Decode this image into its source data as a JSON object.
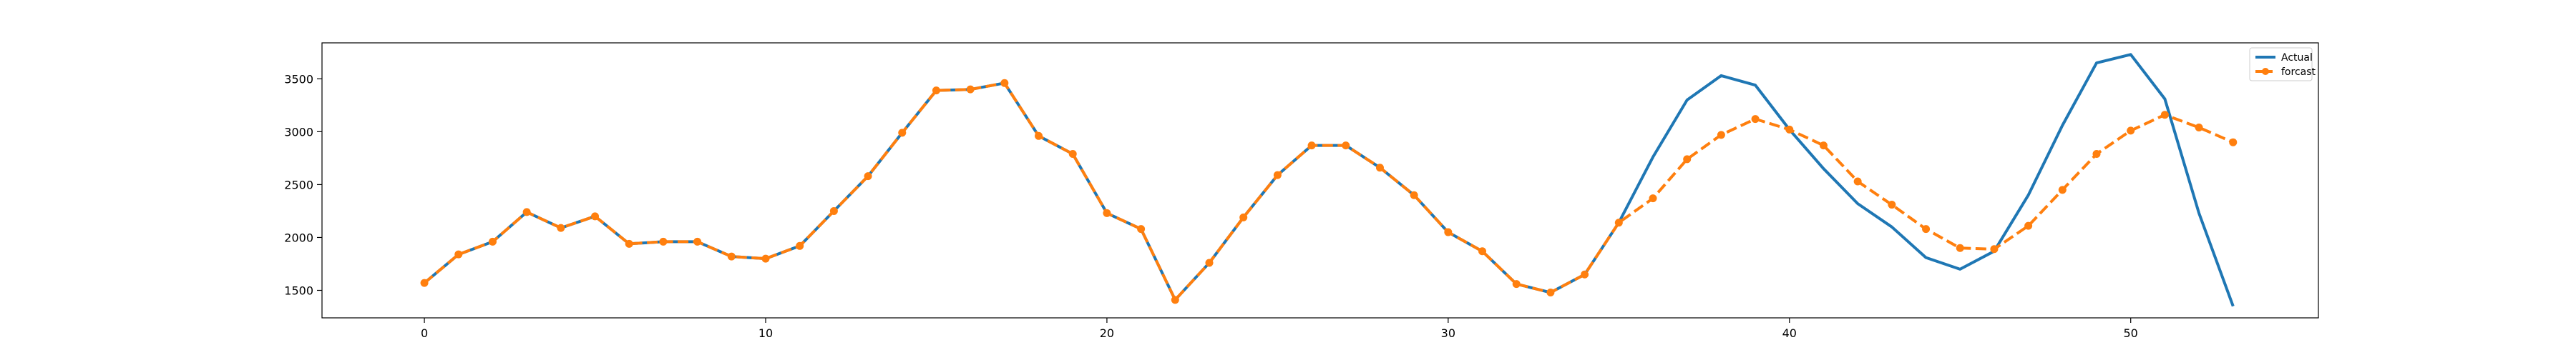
{
  "chart_data": {
    "type": "line",
    "title": "",
    "xlabel": "",
    "ylabel": "",
    "xlim": [
      -3,
      55.5
    ],
    "ylim": [
      1240,
      3840
    ],
    "x_ticks": [
      0,
      10,
      20,
      30,
      40,
      50
    ],
    "y_ticks": [
      1500,
      2000,
      2500,
      3000,
      3500
    ],
    "grid": false,
    "legend": "top-right",
    "series": [
      {
        "name": "Actual",
        "color": "#1f77b4",
        "style": "solid",
        "x": [
          0,
          1,
          2,
          3,
          4,
          5,
          6,
          7,
          8,
          9,
          10,
          11,
          12,
          13,
          14,
          15,
          16,
          17,
          18,
          19,
          20,
          21,
          22,
          23,
          24,
          25,
          26,
          27,
          28,
          29,
          30,
          31,
          32,
          33,
          34,
          35,
          36,
          37,
          38,
          39,
          40,
          41,
          42,
          43,
          44,
          45,
          46,
          47,
          48,
          49,
          50,
          51,
          52,
          53
        ],
        "values": [
          1570,
          1840,
          1960,
          2240,
          2090,
          2200,
          1940,
          1960,
          1960,
          1820,
          1800,
          1920,
          2250,
          2580,
          2990,
          3390,
          3400,
          3460,
          2960,
          2790,
          2230,
          2080,
          1410,
          1760,
          2190,
          2590,
          2870,
          2870,
          2660,
          2400,
          2050,
          1870,
          1560,
          1480,
          1650,
          2140,
          2760,
          3300,
          3530,
          3440,
          3020,
          2650,
          2320,
          2100,
          1810,
          1700,
          1870,
          2400,
          3060,
          3650,
          3730,
          3310,
          2230,
          1350
        ]
      },
      {
        "name": "forcast",
        "color": "#ff7f0e",
        "style": "dashed",
        "x": [
          0,
          1,
          2,
          3,
          4,
          5,
          6,
          7,
          8,
          9,
          10,
          11,
          12,
          13,
          14,
          15,
          16,
          17,
          18,
          19,
          20,
          21,
          22,
          23,
          24,
          25,
          26,
          27,
          28,
          29,
          30,
          31,
          32,
          33,
          34,
          35,
          36,
          37,
          38,
          39,
          40,
          41,
          42,
          43,
          44,
          45,
          46,
          47,
          48,
          49,
          50,
          51,
          52,
          53
        ],
        "values": [
          1570,
          1840,
          1960,
          2240,
          2090,
          2200,
          1940,
          1960,
          1960,
          1820,
          1800,
          1920,
          2250,
          2580,
          2990,
          3390,
          3400,
          3460,
          2960,
          2790,
          2230,
          2080,
          1410,
          1760,
          2190,
          2590,
          2870,
          2870,
          2660,
          2400,
          2050,
          1870,
          1560,
          1480,
          1650,
          2140,
          2370,
          2740,
          2970,
          3120,
          3020,
          2870,
          2530,
          2310,
          2080,
          1900,
          1890,
          2110,
          2450,
          2790,
          3010,
          3160,
          3040,
          2900
        ]
      }
    ]
  }
}
